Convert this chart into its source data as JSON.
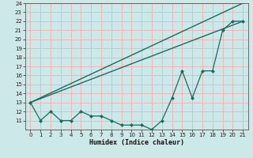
{
  "xlabel": "Humidex (Indice chaleur)",
  "bg_color": "#cce8e8",
  "plot_bg_color": "#cce8e8",
  "grid_color_major": "#e8b8b8",
  "line_color": "#1a6b60",
  "xlim": [
    -0.5,
    21.5
  ],
  "ylim": [
    10,
    24
  ],
  "xticks": [
    0,
    1,
    2,
    3,
    4,
    5,
    6,
    7,
    8,
    9,
    10,
    11,
    12,
    13,
    14,
    15,
    16,
    17,
    18,
    19,
    20,
    21
  ],
  "yticks": [
    11,
    12,
    13,
    14,
    15,
    16,
    17,
    18,
    19,
    20,
    21,
    22,
    23,
    24
  ],
  "data_x": [
    0,
    1,
    2,
    3,
    4,
    5,
    6,
    7,
    8,
    9,
    10,
    11,
    12,
    13,
    14,
    15,
    16,
    17,
    18,
    19,
    20,
    21
  ],
  "data_y": [
    13,
    11,
    12,
    11,
    11,
    12,
    11.5,
    11.5,
    11,
    10.5,
    10.5,
    10.5,
    10,
    11,
    13.5,
    16.5,
    13.5,
    16.5,
    16.5,
    21,
    22,
    22
  ],
  "line1_x": [
    0,
    21
  ],
  "line1_y": [
    13,
    22
  ],
  "line2_x": [
    0,
    21
  ],
  "line2_y": [
    13,
    24
  ]
}
